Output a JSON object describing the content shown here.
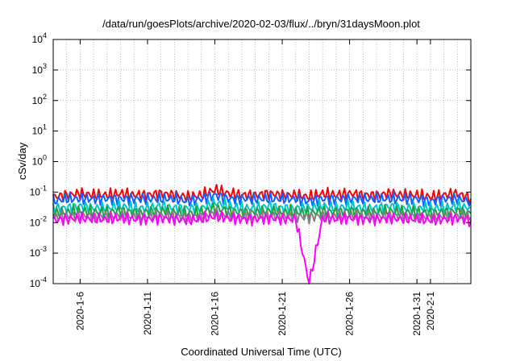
{
  "chart_data": {
    "type": "line",
    "title": "/data/run/goesPlots/archive/2020-02-03/flux/../bryn/31daysMoon.plot",
    "xlabel": "Coordinated Universal Time (UTC)",
    "ylabel": "cSv/day",
    "yscale": "log",
    "ylim": [
      0.0001,
      10000
    ],
    "xlim": [
      "2020-01-04",
      "2020-02-04"
    ],
    "grid": true,
    "legend": "none",
    "yticks": [
      {
        "value": 0.0001,
        "label": "10",
        "exp": "-4"
      },
      {
        "value": 0.001,
        "label": "10",
        "exp": "-3"
      },
      {
        "value": 0.01,
        "label": "10",
        "exp": "-2"
      },
      {
        "value": 0.1,
        "label": "10",
        "exp": "-1"
      },
      {
        "value": 1,
        "label": "10",
        "exp": "0"
      },
      {
        "value": 10,
        "label": "10",
        "exp": "1"
      },
      {
        "value": 100,
        "label": "10",
        "exp": "2"
      },
      {
        "value": 1000,
        "label": "10",
        "exp": "3"
      },
      {
        "value": 10000,
        "label": "10",
        "exp": "4"
      }
    ],
    "xticks": [
      "2020-1-6",
      "2020-1-11",
      "2020-1-16",
      "2020-1-21",
      "2020-1-26",
      "2020-1-31",
      "2020-2-1"
    ],
    "xtick_dates": [
      "2020-01-06",
      "2020-01-11",
      "2020-01-16",
      "2020-01-21",
      "2020-01-26",
      "2020-01-31",
      "2020-02-01"
    ],
    "x": [
      "2020-01-04",
      "2020-01-05",
      "2020-01-06",
      "2020-01-07",
      "2020-01-08",
      "2020-01-09",
      "2020-01-10",
      "2020-01-11",
      "2020-01-12",
      "2020-01-13",
      "2020-01-14",
      "2020-01-15",
      "2020-01-16",
      "2020-01-17",
      "2020-01-18",
      "2020-01-19",
      "2020-01-20",
      "2020-01-21",
      "2020-01-22",
      "2020-01-23",
      "2020-01-24",
      "2020-01-25",
      "2020-01-26",
      "2020-01-27",
      "2020-01-28",
      "2020-01-29",
      "2020-01-30",
      "2020-01-31",
      "2020-02-01",
      "2020-02-02",
      "2020-02-03",
      "2020-02-04"
    ],
    "series": [
      {
        "color": "#ff0000",
        "values": [
          0.07,
          0.08,
          0.09,
          0.08,
          0.08,
          0.09,
          0.08,
          0.08,
          0.09,
          0.08,
          0.07,
          0.08,
          0.12,
          0.09,
          0.08,
          0.08,
          0.09,
          0.08,
          0.08,
          0.07,
          0.09,
          0.08,
          0.09,
          0.08,
          0.08,
          0.09,
          0.08,
          0.08,
          0.07,
          0.08,
          0.09,
          0.06
        ]
      },
      {
        "color": "#1060ff",
        "values": [
          0.05,
          0.06,
          0.06,
          0.06,
          0.06,
          0.06,
          0.06,
          0.06,
          0.06,
          0.06,
          0.05,
          0.06,
          0.08,
          0.06,
          0.06,
          0.06,
          0.06,
          0.06,
          0.06,
          0.05,
          0.06,
          0.06,
          0.06,
          0.06,
          0.06,
          0.06,
          0.06,
          0.06,
          0.05,
          0.06,
          0.06,
          0.05
        ]
      },
      {
        "color": "#00c8c8",
        "values": [
          0.03,
          0.03,
          0.035,
          0.03,
          0.03,
          0.035,
          0.03,
          0.03,
          0.035,
          0.03,
          0.03,
          0.03,
          0.045,
          0.035,
          0.03,
          0.03,
          0.035,
          0.03,
          0.03,
          0.03,
          0.035,
          0.03,
          0.035,
          0.03,
          0.03,
          0.035,
          0.03,
          0.03,
          0.03,
          0.03,
          0.035,
          0.03
        ]
      },
      {
        "color": "#20a040",
        "values": [
          0.02,
          0.022,
          0.024,
          0.022,
          0.022,
          0.024,
          0.022,
          0.022,
          0.024,
          0.022,
          0.02,
          0.022,
          0.03,
          0.024,
          0.022,
          0.022,
          0.024,
          0.022,
          0.022,
          0.02,
          0.024,
          0.022,
          0.024,
          0.022,
          0.022,
          0.024,
          0.022,
          0.022,
          0.02,
          0.022,
          0.024,
          0.02
        ]
      },
      {
        "color": "#808080",
        "values": [
          0.015,
          0.016,
          0.017,
          0.016,
          0.016,
          0.017,
          0.016,
          0.016,
          0.017,
          0.016,
          0.015,
          0.016,
          0.02,
          0.017,
          0.016,
          0.016,
          0.017,
          0.016,
          0.016,
          0.015,
          0.017,
          0.016,
          0.017,
          0.016,
          0.016,
          0.017,
          0.016,
          0.016,
          0.015,
          0.016,
          0.017,
          0.015
        ]
      },
      {
        "color": "#ff00ff",
        "values": [
          0.012,
          0.013,
          0.014,
          0.013,
          0.013,
          0.014,
          0.013,
          0.013,
          0.014,
          0.013,
          0.012,
          0.013,
          0.016,
          0.014,
          0.013,
          0.013,
          0.014,
          0.013,
          0.013,
          0.0001,
          0.014,
          0.013,
          0.014,
          0.013,
          0.013,
          0.014,
          0.013,
          0.013,
          0.012,
          0.013,
          0.014,
          0.012
        ]
      }
    ]
  }
}
